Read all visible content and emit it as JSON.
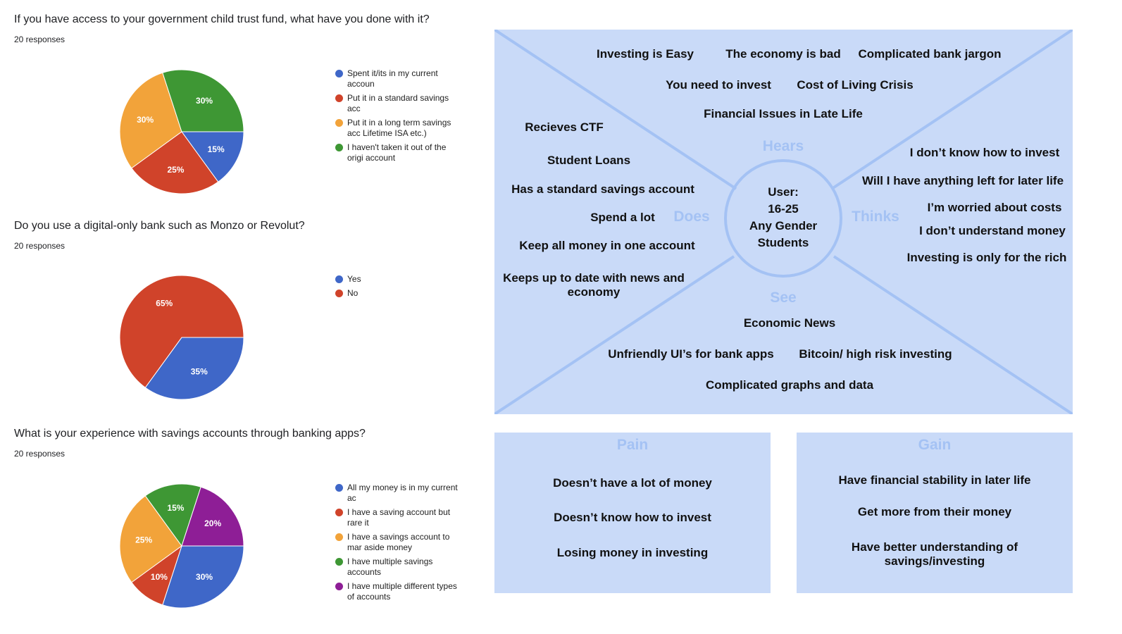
{
  "colors": {
    "blue": "#3f67c8",
    "red": "#d0432a",
    "orange": "#f2a33a",
    "green": "#3e9734",
    "purple": "#8e1e96",
    "map_bg": "#c9daf8",
    "map_line": "#a4c2f4"
  },
  "chart_data": [
    {
      "type": "pie",
      "title": "If you have access to your government child trust fund, what have you done with it?",
      "subtitle": "20 responses",
      "legend_placement": "right",
      "slices": [
        {
          "label": "Spent it/its in my current accoun",
          "value": 15,
          "color": "#3f67c8"
        },
        {
          "label": "Put it in a standard savings acc",
          "value": 25,
          "color": "#d0432a"
        },
        {
          "label": "Put it in a long term savings acc Lifetime ISA etc.)",
          "value": 30,
          "color": "#f2a33a"
        },
        {
          "label": "I haven't taken it out of the origi account",
          "value": 30,
          "color": "#3e9734"
        }
      ]
    },
    {
      "type": "pie",
      "title": "Do you use a digital-only bank such as Monzo or Revolut?",
      "subtitle": "20 responses",
      "legend_placement": "right",
      "slices": [
        {
          "label": "Yes",
          "value": 35,
          "color": "#3f67c8"
        },
        {
          "label": "No",
          "value": 65,
          "color": "#d0432a"
        }
      ]
    },
    {
      "type": "pie",
      "title": "What is your experience with savings accounts through banking apps?",
      "subtitle": "20 responses",
      "legend_placement": "right",
      "slices": [
        {
          "label": "All my money is in my current ac",
          "value": 30,
          "color": "#3f67c8"
        },
        {
          "label": "I have a saving account but rare it",
          "value": 10,
          "color": "#d0432a"
        },
        {
          "label": "I have a savings account to mar aside money",
          "value": 25,
          "color": "#f2a33a"
        },
        {
          "label": "I have multiple savings accounts",
          "value": 15,
          "color": "#3e9734"
        },
        {
          "label": "I have multiple different types of accounts",
          "value": 20,
          "color": "#8e1e96"
        }
      ]
    }
  ],
  "map": {
    "center": [
      "User:",
      "16-25",
      "Any Gender",
      "Students"
    ],
    "labels": {
      "hears": "Hears",
      "does": "Does",
      "thinks": "Thinks",
      "see": "See"
    },
    "hears": [
      "Investing is Easy",
      "The economy is bad",
      "Complicated bank jargon",
      "You need to invest",
      "Cost of Living Crisis",
      "Financial Issues in Late Life"
    ],
    "does": [
      "Recieves CTF",
      "Student Loans",
      "Has a standard savings account",
      "Spend a lot",
      "Keep all money in one account",
      "Keeps up to date with news and",
      "economy"
    ],
    "thinks": [
      "I don’t know how to invest",
      "Will I have anything left for later life",
      "I’m worried about costs",
      "I don’t understand money",
      "Investing is only for the rich"
    ],
    "see": [
      "Economic News",
      "Unfriendly UI’s for bank apps",
      "Bitcoin/ high risk investing",
      "Complicated graphs and data"
    ]
  },
  "pain": {
    "title": "Pain",
    "items": [
      "Doesn’t have a lot of money",
      "Doesn’t know how to invest",
      "Losing money in investing"
    ]
  },
  "gain": {
    "title": "Gain",
    "items": [
      "Have financial stability in later life",
      "Get more from their money",
      "Have better understanding of",
      "savings/investing"
    ]
  }
}
